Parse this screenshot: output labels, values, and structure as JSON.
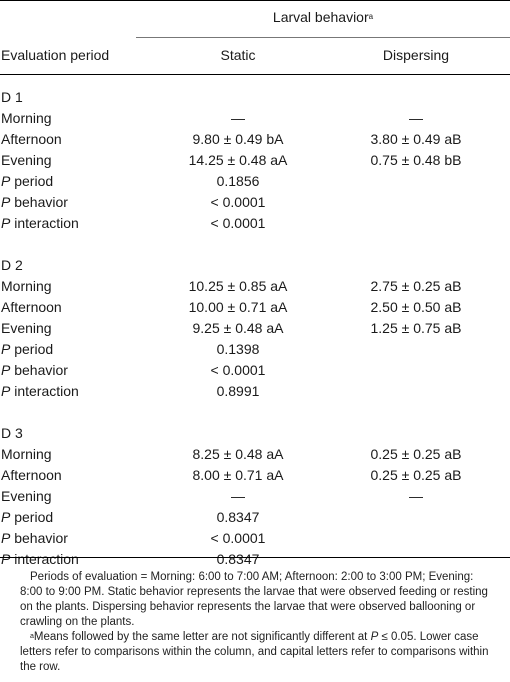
{
  "header": {
    "group_title": "Larval behavior",
    "group_title_superscript": "a",
    "col_period": "Evaluation period",
    "col_static": "Static",
    "col_dispersing": "Dispersing"
  },
  "sections": [
    {
      "label": "D 1",
      "rows": [
        {
          "label": "Morning",
          "static": "—",
          "dispersing": "—"
        },
        {
          "label": "Afternoon",
          "static": "9.80 ± 0.49 bA",
          "dispersing": "3.80 ± 0.49 aB"
        },
        {
          "label": "Evening",
          "static": "14.25 ± 0.48 aA",
          "dispersing": "0.75 ± 0.48 bB"
        }
      ],
      "stats": [
        {
          "p": "P",
          "label": " period",
          "value": "0.1856"
        },
        {
          "p": "P",
          "label": " behavior",
          "value": "< 0.0001"
        },
        {
          "p": "P",
          "label": " interaction",
          "value": "< 0.0001"
        }
      ]
    },
    {
      "label": "D 2",
      "rows": [
        {
          "label": "Morning",
          "static": "10.25 ± 0.85 aA",
          "dispersing": "2.75 ± 0.25 aB"
        },
        {
          "label": "Afternoon",
          "static": "10.00 ± 0.71 aA",
          "dispersing": "2.50 ± 0.50 aB"
        },
        {
          "label": "Evening",
          "static": "9.25 ± 0.48 aA",
          "dispersing": "1.25 ± 0.75 aB"
        }
      ],
      "stats": [
        {
          "p": "P",
          "label": " period",
          "value": "0.1398"
        },
        {
          "p": "P",
          "label": " behavior",
          "value": "< 0.0001"
        },
        {
          "p": "P",
          "label": " interaction",
          "value": "0.8991"
        }
      ]
    },
    {
      "label": "D 3",
      "rows": [
        {
          "label": "Morning",
          "static": "8.25 ± 0.48 aA",
          "dispersing": "0.25 ± 0.25 aB"
        },
        {
          "label": "Afternoon",
          "static": "8.00 ± 0.71 aA",
          "dispersing": "0.25 ± 0.25 aB"
        },
        {
          "label": "Evening",
          "static": "—",
          "dispersing": "—"
        }
      ],
      "stats": [
        {
          "p": "P",
          "label": " period",
          "value": "0.8347"
        },
        {
          "p": "P",
          "label": " behavior",
          "value": "< 0.0001"
        },
        {
          "p": "P",
          "label": " interaction",
          "value": "0.8347"
        }
      ]
    }
  ],
  "footnotes": {
    "periods": "Periods of evaluation = Morning: 6:00 to 7:00 AM; Afternoon: 2:00 to 3:00 PM; Evening: 8:00 to 9:00 PM. Static behavior represents the larvae that were observed feeding or resting on the plants. Dispersing behavior represents the larvae that were observed ballooning or crawling on the plants.",
    "means_mark": "a",
    "means_before": "Means followed by the same letter are not significantly different at ",
    "means_p": "P",
    "means_after": " ≤ 0.05. Lower case letters refer to comparisons within the column, and capital letters refer to comparisons within the row."
  }
}
